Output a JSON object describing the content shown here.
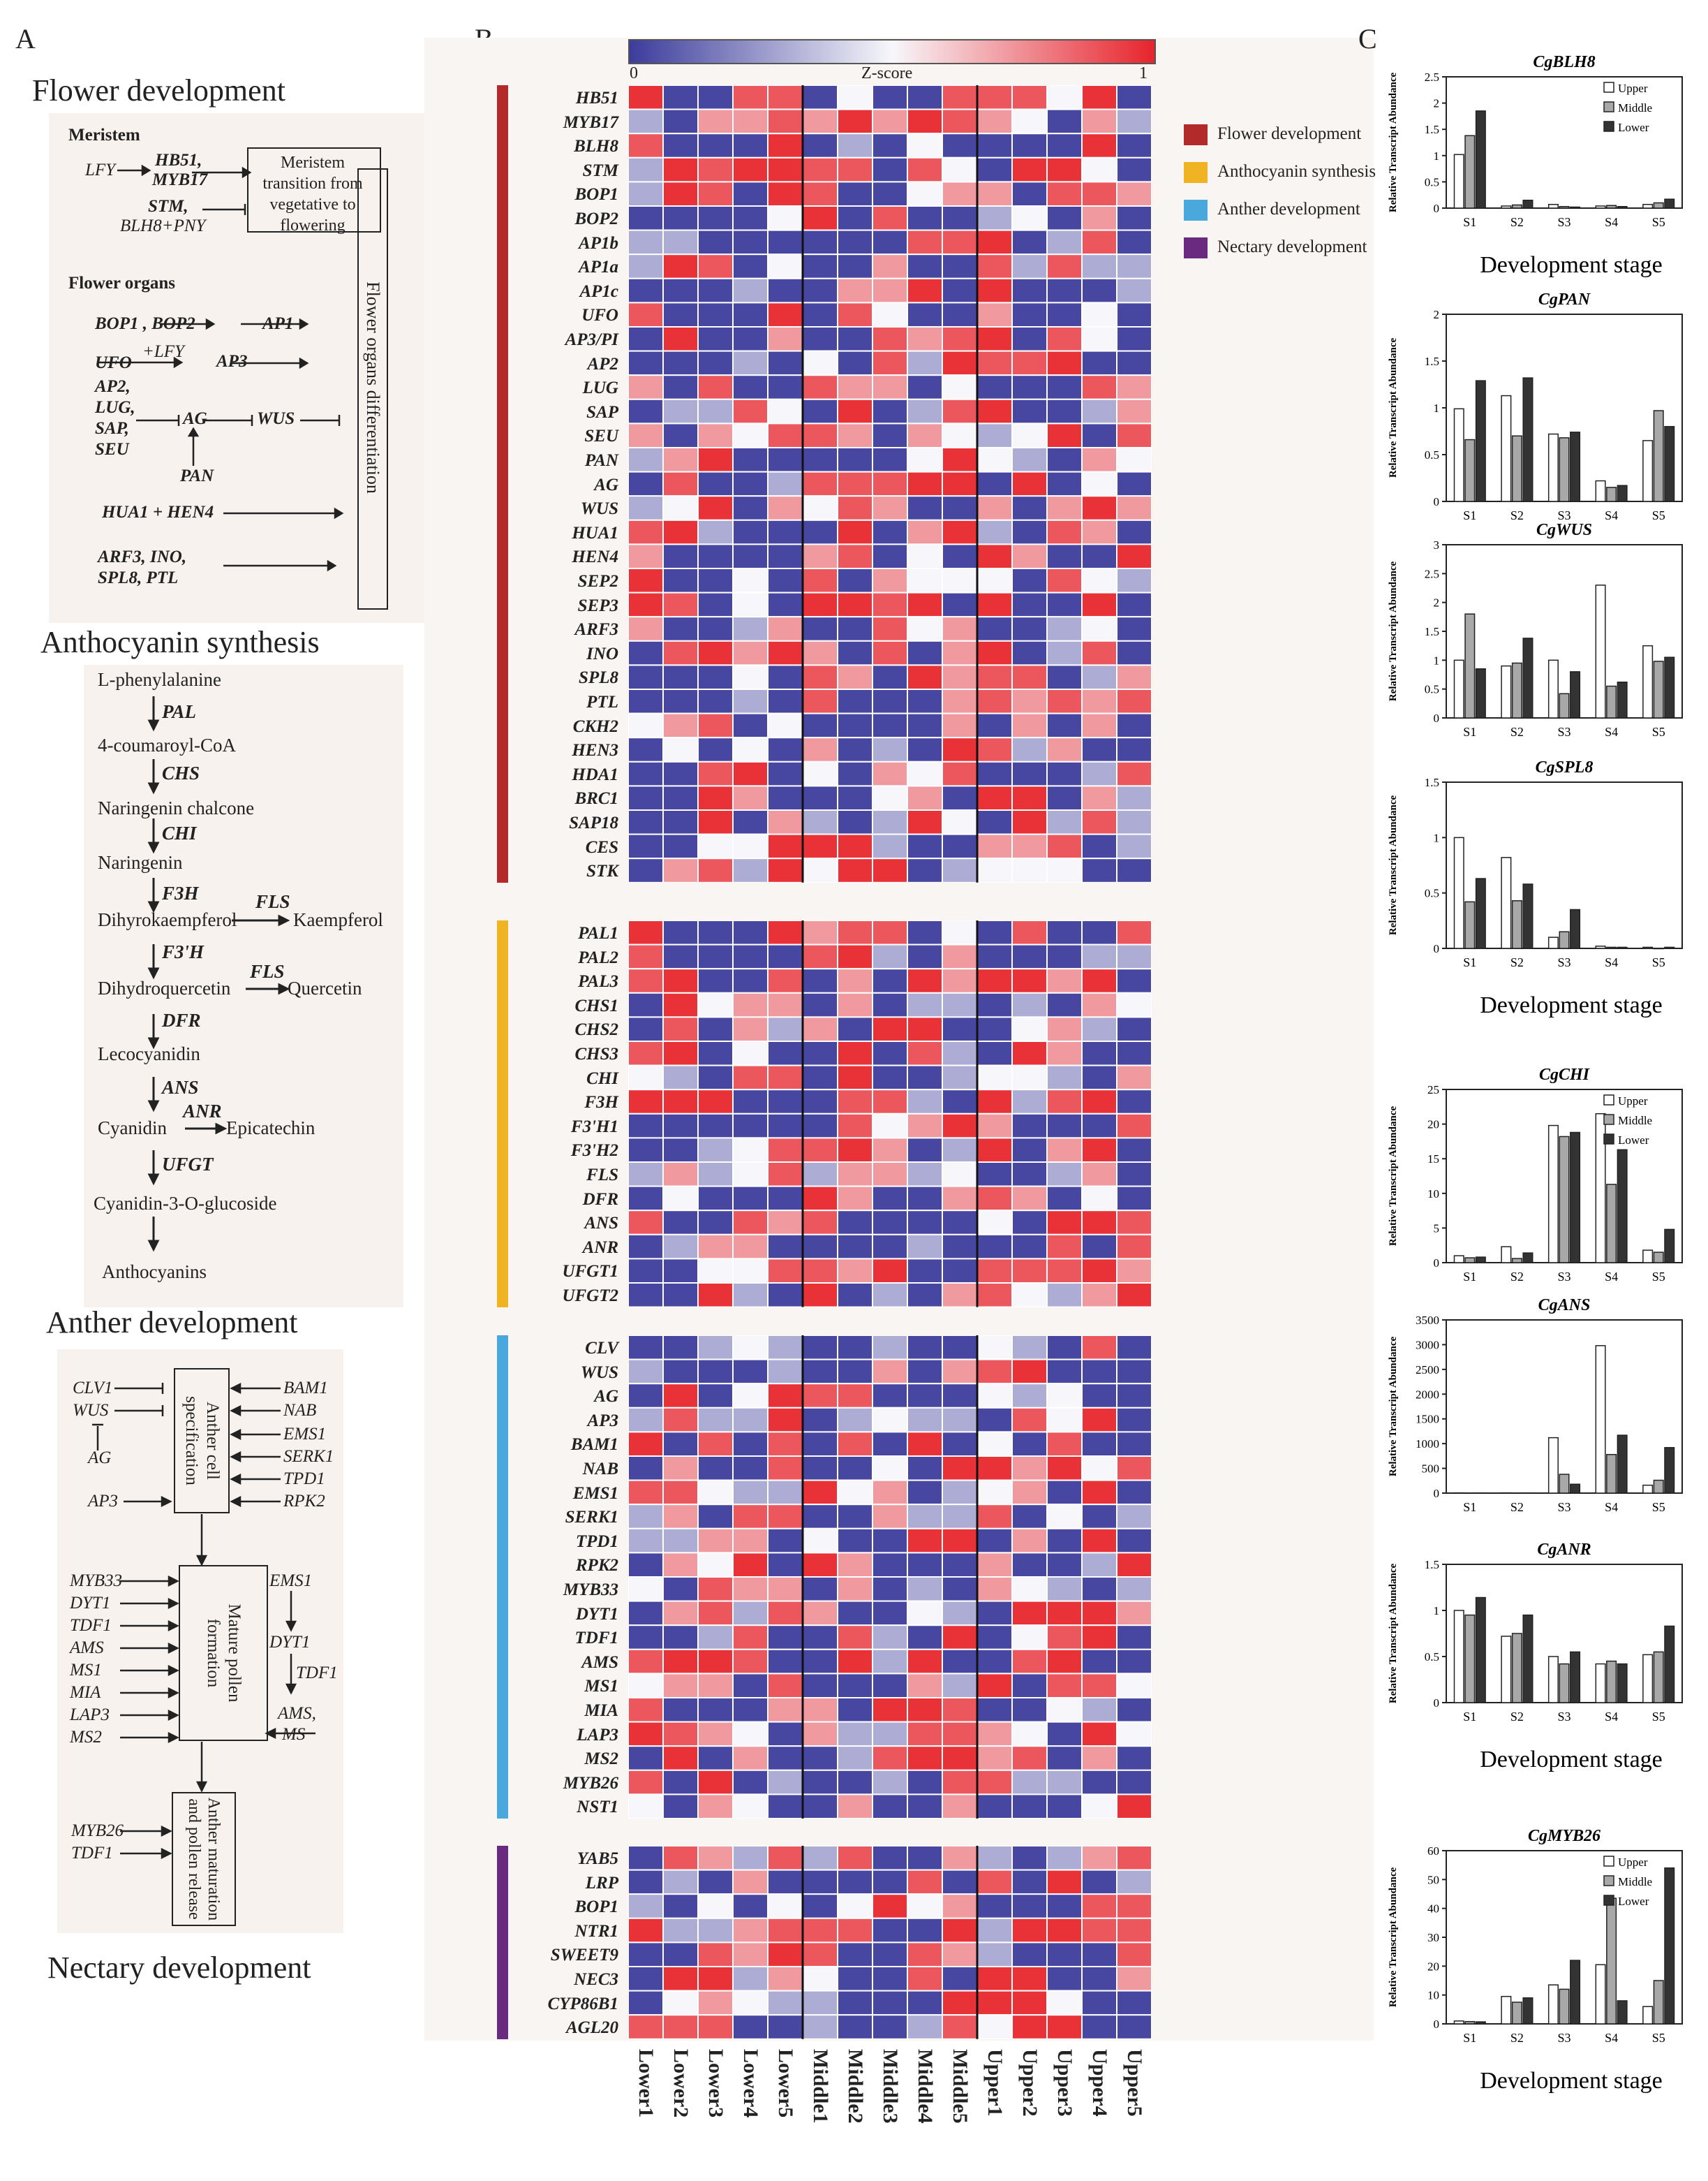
{
  "panels": {
    "a": "A",
    "b": "B",
    "c": "C"
  },
  "a": {
    "flower_title": "Flower development",
    "meristem": {
      "head": "Meristem",
      "lfy": "LFY",
      "hb51": "HB51,",
      "myb17": "MYB17",
      "stm": "STM,",
      "blh8": "BLH8+PNY",
      "box": "Meristem transition from vegetative to flowering"
    },
    "organs": {
      "head": "Flower organs",
      "bop": "BOP1 , BOP2",
      "ap1": "AP1",
      "ufo": "UFO",
      "lfy": "+LFY",
      "ap3": "AP3",
      "ap2": "AP2,",
      "lug": "LUG,",
      "sap": "SAP,",
      "seu": "SEU",
      "ag": "AG",
      "wus": "WUS",
      "pan": "PAN",
      "hua": "HUA1 + HEN4",
      "arf": "ARF3, INO,",
      "spl": "SPL8, PTL",
      "box": "Flower organs differentiation"
    },
    "antho_title": "Anthocyanin synthesis",
    "pathway": {
      "compounds": [
        "L-phenylalanine",
        "4-coumaroyl-CoA",
        "Naringenin chalcone",
        "Naringenin",
        "Dihyrokaempferol",
        "Dihydroquercetin",
        "Lecocyanidin",
        "Cyanidin",
        "Cyanidin-3-O-glucoside",
        "Anthocyanins"
      ],
      "enzymes": [
        "PAL",
        "CHS",
        "CHI",
        "",
        "F3H",
        "F3'H",
        "DFR",
        "ANS",
        "UFGT",
        ""
      ],
      "fls": "FLS",
      "kaempferol": "Kaempferol",
      "quercetin": "Quercetin",
      "anr": "ANR",
      "epicatechin": "Epicatechin"
    },
    "anther_title": "Anther development",
    "anther": {
      "box1": "Anther cell specification",
      "box2": "Mature pollen formation",
      "box3": "Anther maturation and pollen release",
      "left1": [
        "CLV1",
        "WUS",
        "AG",
        "AP3"
      ],
      "right1": [
        "BAM1",
        "NAB",
        "EMS1",
        "SERK1",
        "TPD1",
        "RPK2"
      ],
      "left2": [
        "MYB33",
        "DYT1",
        "TDF1",
        "AMS",
        "MS1",
        "MIA",
        "LAP3",
        "MS2"
      ],
      "right2": {
        "ems1": "EMS1",
        "dyt1": "DYT1",
        "tdf1": "TDF1",
        "ams": "AMS,",
        "ms": "MS"
      },
      "left3": [
        "MYB26",
        "TDF1"
      ]
    },
    "nectary_title": "Nectary development"
  },
  "heatmap": {
    "scale_label": "Z-score",
    "scale_min": "0",
    "scale_max": "1",
    "columns": [
      "Lower1",
      "Lower2",
      "Lower3",
      "Lower4",
      "Lower5",
      "Middle1",
      "Middle2",
      "Middle3",
      "Middle4",
      "Middle5",
      "Upper1",
      "Upper2",
      "Upper3",
      "Upper4",
      "Upper5"
    ],
    "colors": {
      "low": "#3c3c9c",
      "mid": "#f7f7fb",
      "high": "#e8242c"
    },
    "groups": [
      {
        "name": "Flower development",
        "color": "#b32a2a",
        "genes": [
          "HB51",
          "MYB17",
          "BLH8",
          "STM",
          "BOP1",
          "BOP2",
          "AP1b",
          "AP1a",
          "AP1c",
          "UFO",
          "AP3/PI",
          "AP2",
          "LUG",
          "SAP",
          "SEU",
          "PAN",
          "AG",
          "WUS",
          "HUA1",
          "HEN4",
          "SEP2",
          "SEP3",
          "ARF3",
          "INO",
          "SPL8",
          "PTL",
          "CKH2",
          "HEN3",
          "HDA1",
          "BRC1",
          "SAP18",
          "CES",
          "STK"
        ]
      },
      {
        "name": "Anthocyanin synthesis",
        "color": "#f0b323",
        "genes": [
          "PAL1",
          "PAL2",
          "PAL3",
          "CHS1",
          "CHS2",
          "CHS3",
          "CHI",
          "F3H",
          "F3'H1",
          "F3'H2",
          "FLS",
          "DFR",
          "ANS",
          "ANR",
          "UFGT1",
          "UFGT2"
        ]
      },
      {
        "name": "Anther development",
        "color": "#4aa8dc",
        "genes": [
          "CLV",
          "WUS",
          "AG",
          "AP3",
          "BAM1",
          "NAB",
          "EMS1",
          "SERK1",
          "TPD1",
          "RPK2",
          "MYB33",
          "DYT1",
          "TDF1",
          "AMS",
          "MS1",
          "MIA",
          "LAP3",
          "MS2",
          "MYB26",
          "NST1"
        ]
      },
      {
        "name": "Nectary development",
        "color": "#6a2a80",
        "genes": [
          "YAB5",
          "LRP",
          "BOP1",
          "NTR1",
          "SWEET9",
          "NEC3",
          "CYP86B1",
          "AGL20"
        ]
      }
    ]
  },
  "chart_data": [
    {
      "type": "bar",
      "title": "CgBLH8",
      "categories": [
        "S1",
        "S2",
        "S3",
        "S4",
        "S5"
      ],
      "ylim": [
        0,
        2.5
      ],
      "yticks": [
        "0",
        "0.5",
        "1",
        "1.5",
        "2",
        "2.5"
      ],
      "ylabel": "Relative Transcript Abundance",
      "xlabel": "Development stage",
      "legend": true,
      "series": [
        {
          "name": "Upper",
          "values": [
            1.02,
            0.04,
            0.07,
            0.04,
            0.07
          ]
        },
        {
          "name": "Middle",
          "values": [
            1.38,
            0.06,
            0.03,
            0.05,
            0.1
          ]
        },
        {
          "name": "Lower",
          "values": [
            1.85,
            0.15,
            0.02,
            0.03,
            0.17
          ]
        }
      ]
    },
    {
      "type": "bar",
      "title": "CgPAN",
      "categories": [
        "S1",
        "S2",
        "S3",
        "S4",
        "S5"
      ],
      "ylim": [
        0,
        2
      ],
      "yticks": [
        "0",
        "0.5",
        "1",
        "1.5",
        "2"
      ],
      "ylabel": "Relative Transcript Abundance",
      "xlabel": "",
      "legend": false,
      "series": [
        {
          "name": "Upper",
          "values": [
            0.99,
            1.13,
            0.72,
            0.22,
            0.65
          ]
        },
        {
          "name": "Middle",
          "values": [
            0.66,
            0.7,
            0.68,
            0.15,
            0.97
          ]
        },
        {
          "name": "Lower",
          "values": [
            1.29,
            1.32,
            0.74,
            0.17,
            0.8
          ]
        }
      ]
    },
    {
      "type": "bar",
      "title": "CgWUS",
      "categories": [
        "S1",
        "S2",
        "S3",
        "S4",
        "S5"
      ],
      "ylim": [
        0,
        3
      ],
      "yticks": [
        "0",
        "0.5",
        "1",
        "1.5",
        "2",
        "2.5",
        "3"
      ],
      "ylabel": "Relative Transcript Abundance",
      "xlabel": "",
      "legend": false,
      "series": [
        {
          "name": "Upper",
          "values": [
            1.0,
            0.9,
            1.0,
            2.3,
            1.25
          ]
        },
        {
          "name": "Middle",
          "values": [
            1.8,
            0.95,
            0.42,
            0.55,
            0.98
          ]
        },
        {
          "name": "Lower",
          "values": [
            0.85,
            1.38,
            0.8,
            0.62,
            1.05
          ]
        }
      ]
    },
    {
      "type": "bar",
      "title": "CgSPL8",
      "categories": [
        "S1",
        "S2",
        "S3",
        "S4",
        "S5"
      ],
      "ylim": [
        0,
        1.5
      ],
      "yticks": [
        "0",
        "0.5",
        "1",
        "1.5"
      ],
      "ylabel": "Relative Transcript Abundance",
      "xlabel": "Development stage",
      "legend": false,
      "series": [
        {
          "name": "Upper",
          "values": [
            1.0,
            0.82,
            0.1,
            0.02,
            0.01
          ]
        },
        {
          "name": "Middle",
          "values": [
            0.42,
            0.43,
            0.15,
            0.01,
            0.0
          ]
        },
        {
          "name": "Lower",
          "values": [
            0.63,
            0.58,
            0.35,
            0.01,
            0.01
          ]
        }
      ]
    },
    {
      "type": "bar",
      "title": "CgCHI",
      "categories": [
        "S1",
        "S2",
        "S3",
        "S4",
        "S5"
      ],
      "ylim": [
        0,
        25
      ],
      "yticks": [
        "0",
        "5",
        "10",
        "15",
        "20",
        "25"
      ],
      "ylabel": "Relative Transcript Abundance",
      "xlabel": "",
      "legend": true,
      "series": [
        {
          "name": "Upper",
          "values": [
            1.0,
            2.3,
            19.8,
            21.5,
            1.8
          ]
        },
        {
          "name": "Middle",
          "values": [
            0.7,
            0.6,
            18.2,
            11.3,
            1.5
          ]
        },
        {
          "name": "Lower",
          "values": [
            0.8,
            1.4,
            18.8,
            16.3,
            4.8
          ]
        }
      ]
    },
    {
      "type": "bar",
      "title": "CgANS",
      "categories": [
        "S1",
        "S2",
        "S3",
        "S4",
        "S5"
      ],
      "ylim": [
        0,
        3500
      ],
      "yticks": [
        "0",
        "500",
        "1000",
        "1500",
        "2000",
        "2500",
        "3000",
        "3500"
      ],
      "ylabel": "Relative Transcript Abundance",
      "xlabel": "",
      "legend": false,
      "series": [
        {
          "name": "Upper",
          "values": [
            5,
            5,
            1120,
            2980,
            160
          ]
        },
        {
          "name": "Middle",
          "values": [
            3,
            3,
            380,
            780,
            260
          ]
        },
        {
          "name": "Lower",
          "values": [
            4,
            4,
            180,
            1170,
            920
          ]
        }
      ]
    },
    {
      "type": "bar",
      "title": "CgANR",
      "categories": [
        "S1",
        "S2",
        "S3",
        "S4",
        "S5"
      ],
      "ylim": [
        0,
        1.5
      ],
      "yticks": [
        "0",
        "0.5",
        "1",
        "1.5"
      ],
      "ylabel": "Relative Transcript Abundance",
      "xlabel": "Development stage",
      "legend": false,
      "series": [
        {
          "name": "Upper",
          "values": [
            1.0,
            0.72,
            0.5,
            0.42,
            0.52
          ]
        },
        {
          "name": "Middle",
          "values": [
            0.95,
            0.75,
            0.42,
            0.45,
            0.55
          ]
        },
        {
          "name": "Lower",
          "values": [
            1.14,
            0.95,
            0.55,
            0.42,
            0.83
          ]
        }
      ]
    },
    {
      "type": "bar",
      "title": "CgMYB26",
      "categories": [
        "S1",
        "S2",
        "S3",
        "S4",
        "S5"
      ],
      "ylim": [
        0,
        60
      ],
      "yticks": [
        "0",
        "10",
        "20",
        "30",
        "40",
        "50",
        "60"
      ],
      "ylabel": "Relative Transcript Abundance",
      "xlabel": "Development stage",
      "legend": true,
      "series": [
        {
          "name": "Upper",
          "values": [
            1.0,
            9.5,
            13.5,
            20.5,
            6.0
          ]
        },
        {
          "name": "Middle",
          "values": [
            0.8,
            7.5,
            12.0,
            43.5,
            15.0
          ]
        },
        {
          "name": "Lower",
          "values": [
            0.7,
            9.0,
            22.0,
            8.0,
            54.0
          ]
        }
      ]
    }
  ]
}
